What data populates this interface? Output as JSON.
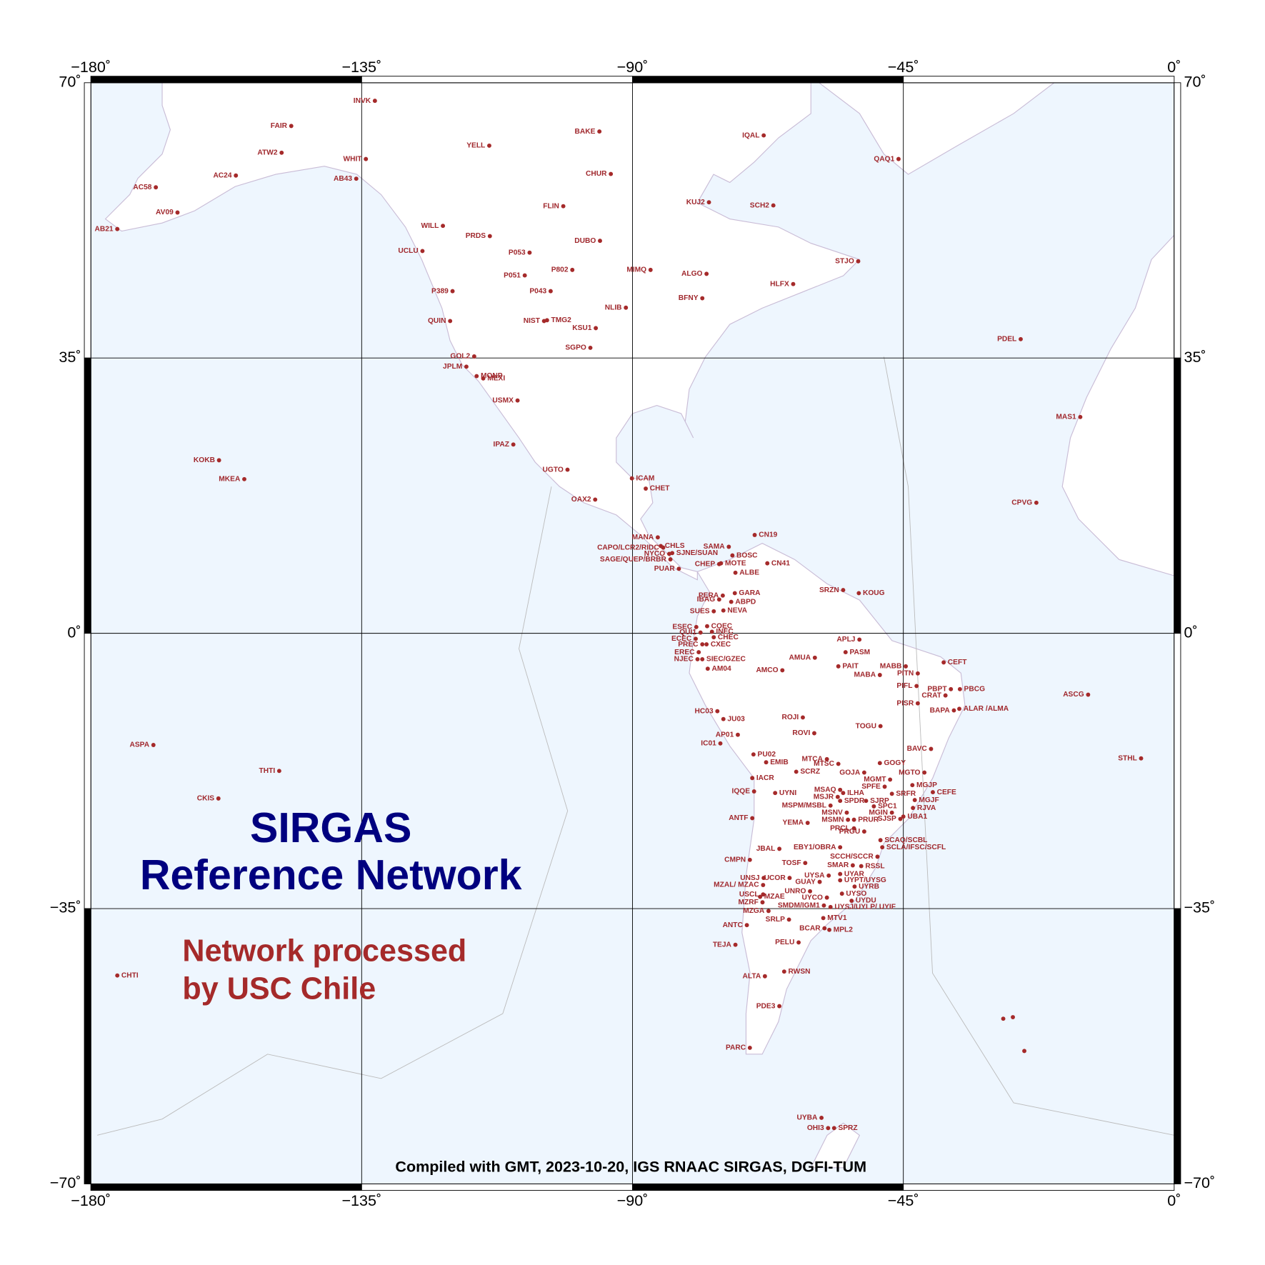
{
  "map": {
    "title_lines": [
      "SIRGAS",
      "Reference Network"
    ],
    "subtitle_lines": [
      "Network processed",
      "by USC Chile"
    ],
    "credit": "Compiled with GMT, 2023-10-20, IGS RNAAC SIRGAS, DGFI-TUM",
    "xlim": [
      -180,
      0
    ],
    "ylim": [
      -70,
      70
    ],
    "xticks": [
      {
        "value": -180,
        "label": "−180˚"
      },
      {
        "value": -135,
        "label": "−135˚"
      },
      {
        "value": -90,
        "label": "−90˚"
      },
      {
        "value": -45,
        "label": "−45˚"
      },
      {
        "value": 0,
        "label": "0˚"
      }
    ],
    "yticks": [
      {
        "value": 70,
        "label": "70˚"
      },
      {
        "value": 35,
        "label": "35˚"
      },
      {
        "value": 0,
        "label": "0˚"
      },
      {
        "value": -35,
        "label": "−35˚"
      },
      {
        "value": -70,
        "label": "−70˚"
      }
    ],
    "stations": [
      {
        "name": "INVK",
        "lon": -132.8,
        "lat": 67.7
      },
      {
        "name": "FAIR",
        "lon": -146.7,
        "lat": 64.5
      },
      {
        "name": "ATW2",
        "lon": -148.3,
        "lat": 61.1
      },
      {
        "name": "WHIT",
        "lon": -134.3,
        "lat": 60.3
      },
      {
        "name": "AC24",
        "lon": -155.9,
        "lat": 58.2
      },
      {
        "name": "AB43",
        "lon": -135.9,
        "lat": 57.8
      },
      {
        "name": "AC58",
        "lon": -169.2,
        "lat": 56.7
      },
      {
        "name": "AV09",
        "lon": -165.6,
        "lat": 53.5
      },
      {
        "name": "YELL",
        "lon": -113.8,
        "lat": 62.0
      },
      {
        "name": "BAKE",
        "lon": -95.5,
        "lat": 63.8
      },
      {
        "name": "IQAL",
        "lon": -68.2,
        "lat": 63.3
      },
      {
        "name": "QAQ1",
        "lon": -45.8,
        "lat": 60.3
      },
      {
        "name": "CHUR",
        "lon": -93.6,
        "lat": 58.4
      },
      {
        "name": "KUJ2",
        "lon": -77.3,
        "lat": 54.8
      },
      {
        "name": "SCH2",
        "lon": -66.6,
        "lat": 54.4
      },
      {
        "name": "FLIN",
        "lon": -101.5,
        "lat": 54.3
      },
      {
        "name": "WILL",
        "lon": -121.5,
        "lat": 51.8
      },
      {
        "name": "PRDS",
        "lon": -113.7,
        "lat": 50.5
      },
      {
        "name": "DUBO",
        "lon": -95.4,
        "lat": 49.9
      },
      {
        "name": "UCLU",
        "lon": -124.9,
        "lat": 48.6
      },
      {
        "name": "P053",
        "lon": -107.1,
        "lat": 48.4
      },
      {
        "name": "STJO",
        "lon": -52.5,
        "lat": 47.3
      },
      {
        "name": "P802",
        "lon": -100.0,
        "lat": 46.2
      },
      {
        "name": "MIMQ",
        "lon": -87.0,
        "lat": 46.2
      },
      {
        "name": "P051",
        "lon": -107.9,
        "lat": 45.5
      },
      {
        "name": "ALGO",
        "lon": -77.7,
        "lat": 45.7
      },
      {
        "name": "HLFX",
        "lon": -63.3,
        "lat": 44.4
      },
      {
        "name": "P389",
        "lon": -119.9,
        "lat": 43.5
      },
      {
        "name": "P043",
        "lon": -103.6,
        "lat": 43.5
      },
      {
        "name": "BFNY",
        "lon": -78.4,
        "lat": 42.6
      },
      {
        "name": "NLIB",
        "lon": -91.1,
        "lat": 41.4
      },
      {
        "name": "QUIN",
        "lon": -120.3,
        "lat": 39.7
      },
      {
        "name": "NIST",
        "lon": -104.7,
        "lat": 39.7
      },
      {
        "name": "KSU1",
        "lon": -96.1,
        "lat": 38.8
      },
      {
        "name": "SGPO",
        "lon": -97.0,
        "lat": 36.3
      },
      {
        "name": "PDEL",
        "lon": -25.5,
        "lat": 37.4
      },
      {
        "name": "GOL2",
        "lon": -116.3,
        "lat": 35.2
      },
      {
        "name": "JPLM",
        "lon": -117.6,
        "lat": 33.9
      },
      {
        "name": "USMX",
        "lon": -109.1,
        "lat": 29.6
      },
      {
        "name": "MAS1",
        "lon": -15.6,
        "lat": 27.5
      },
      {
        "name": "IPAZ",
        "lon": -109.8,
        "lat": 24.0
      },
      {
        "name": "KOKB",
        "lon": -158.7,
        "lat": 22.0
      },
      {
        "name": "MKEA",
        "lon": -154.5,
        "lat": 19.6
      },
      {
        "name": "UGTO",
        "lon": -100.8,
        "lat": 20.8
      },
      {
        "name": "CPVG",
        "lon": -22.9,
        "lat": 16.6
      },
      {
        "name": "OAX2",
        "lon": -96.2,
        "lat": 17.0
      },
      {
        "name": "MANA",
        "lon": -85.8,
        "lat": 12.2
      },
      {
        "name": "CAPO/LCR2/RIDC",
        "lon": -84.9,
        "lat": 10.9
      },
      {
        "name": "SAMA",
        "lon": -74.0,
        "lat": 11.0
      },
      {
        "name": "NYCO",
        "lon": -83.9,
        "lat": 10.1
      },
      {
        "name": "SAGE/QUEP/BRBR",
        "lon": -83.7,
        "lat": 9.4
      },
      {
        "name": "CHEP",
        "lon": -75.6,
        "lat": 8.8
      },
      {
        "name": "PUAR",
        "lon": -82.3,
        "lat": 8.2
      },
      {
        "name": "SRZN",
        "lon": -55.0,
        "lat": 5.5
      },
      {
        "name": "PERA",
        "lon": -75.0,
        "lat": 4.8
      },
      {
        "name": "IBAG",
        "lon": -75.6,
        "lat": 4.3
      },
      {
        "name": "SUES",
        "lon": -76.5,
        "lat": 2.8
      },
      {
        "name": "ESEC",
        "lon": -79.4,
        "lat": 0.8
      },
      {
        "name": "QUI1",
        "lon": -78.7,
        "lat": 0.1
      },
      {
        "name": "ECEC",
        "lon": -79.5,
        "lat": -0.7
      },
      {
        "name": "PREC",
        "lon": -78.4,
        "lat": -1.4
      },
      {
        "name": "EREC",
        "lon": -79.0,
        "lat": -2.4
      },
      {
        "name": "NJEC",
        "lon": -79.2,
        "lat": -3.3
      },
      {
        "name": "APLJ",
        "lon": -52.3,
        "lat": -0.8
      },
      {
        "name": "AMUA",
        "lon": -59.7,
        "lat": -3.1
      },
      {
        "name": "MABB",
        "lon": -44.6,
        "lat": -4.2
      },
      {
        "name": "MABA",
        "lon": -48.9,
        "lat": -5.3
      },
      {
        "name": "PITN",
        "lon": -42.6,
        "lat": -5.1
      },
      {
        "name": "AMCO",
        "lon": -65.1,
        "lat": -4.7
      },
      {
        "name": "PBPT",
        "lon": -37.1,
        "lat": -7.1
      },
      {
        "name": "PIFL",
        "lon": -42.8,
        "lat": -6.7
      },
      {
        "name": "CRAT",
        "lon": -38.0,
        "lat": -7.9
      },
      {
        "name": "ASCG",
        "lon": -14.3,
        "lat": -7.8
      },
      {
        "name": "PISR",
        "lon": -42.6,
        "lat": -8.9
      },
      {
        "name": "BAPA",
        "lon": -36.6,
        "lat": -9.8
      },
      {
        "name": "HC03",
        "lon": -75.9,
        "lat": -9.9
      },
      {
        "name": "ROJI",
        "lon": -61.7,
        "lat": -10.7
      },
      {
        "name": "TOGU",
        "lon": -48.8,
        "lat": -11.8
      },
      {
        "name": "ROVI",
        "lon": -59.8,
        "lat": -12.7
      },
      {
        "name": "AP01",
        "lon": -72.5,
        "lat": -12.9
      },
      {
        "name": "ASPA",
        "lon": -169.6,
        "lat": -14.2
      },
      {
        "name": "IC01",
        "lon": -75.4,
        "lat": -14.0
      },
      {
        "name": "BAVC",
        "lon": -40.4,
        "lat": -14.7
      },
      {
        "name": "STHL",
        "lon": -5.5,
        "lat": -15.9
      },
      {
        "name": "MTCA",
        "lon": -57.7,
        "lat": -16.0
      },
      {
        "name": "MTSC",
        "lon": -55.8,
        "lat": -16.6
      },
      {
        "name": "THTI",
        "lon": -148.7,
        "lat": -17.5
      },
      {
        "name": "GOJA",
        "lon": -51.5,
        "lat": -17.7
      },
      {
        "name": "MGTO",
        "lon": -41.5,
        "lat": -17.7
      },
      {
        "name": "MGMT",
        "lon": -47.2,
        "lat": -18.6
      },
      {
        "name": "SPFE",
        "lon": -48.1,
        "lat": -19.5
      },
      {
        "name": "IQQE",
        "lon": -69.8,
        "lat": -20.1
      },
      {
        "name": "MSAQ",
        "lon": -55.5,
        "lat": -19.9
      },
      {
        "name": "MSJR",
        "lon": -55.9,
        "lat": -20.8
      },
      {
        "name": "CKIS",
        "lon": -158.8,
        "lat": -21.0
      },
      {
        "name": "MSPM/MSBL",
        "lon": -57.1,
        "lat": -21.9
      },
      {
        "name": "MSNV",
        "lon": -54.4,
        "lat": -22.8
      },
      {
        "name": "MGIN",
        "lon": -46.9,
        "lat": -22.8
      },
      {
        "name": "ANTF",
        "lon": -70.1,
        "lat": -23.5
      },
      {
        "name": "MSMN",
        "lon": -54.2,
        "lat": -23.7
      },
      {
        "name": "SJSP",
        "lon": -45.5,
        "lat": -23.6
      },
      {
        "name": "YEMA",
        "lon": -60.9,
        "lat": -24.1
      },
      {
        "name": "PRCL",
        "lon": -53.2,
        "lat": -24.8
      },
      {
        "name": "PRGU",
        "lon": -51.5,
        "lat": -25.2
      },
      {
        "name": "EBY1/OBRA",
        "lon": -55.5,
        "lat": -27.2
      },
      {
        "name": "JBAL",
        "lon": -65.6,
        "lat": -27.4
      },
      {
        "name": "SCCH/SCCR",
        "lon": -49.3,
        "lat": -28.4
      },
      {
        "name": "CMPN",
        "lon": -70.5,
        "lat": -28.8
      },
      {
        "name": "TOSF",
        "lon": -61.3,
        "lat": -29.2
      },
      {
        "name": "SMAR",
        "lon": -53.4,
        "lat": -29.5
      },
      {
        "name": "UCOR",
        "lon": -63.9,
        "lat": -31.1
      },
      {
        "name": "UYSA",
        "lon": -57.4,
        "lat": -30.8
      },
      {
        "name": "MZAL/ MZAC",
        "lon": -68.3,
        "lat": -32.0
      },
      {
        "name": "UNSJ",
        "lon": -68.2,
        "lat": -31.1
      },
      {
        "name": "GUAY",
        "lon": -58.9,
        "lat": -31.6
      },
      {
        "name": "UNRO",
        "lon": -60.5,
        "lat": -32.8
      },
      {
        "name": "USCL",
        "lon": -68.3,
        "lat": -33.2
      },
      {
        "name": "UYCO",
        "lon": -57.7,
        "lat": -33.6
      },
      {
        "name": "MZRF",
        "lon": -68.4,
        "lat": -34.2
      },
      {
        "name": "SMDM/IGM1",
        "lon": -58.2,
        "lat": -34.6
      },
      {
        "name": "MZGA",
        "lon": -67.4,
        "lat": -35.3
      },
      {
        "name": "SRLP",
        "lon": -64.0,
        "lat": -36.4
      },
      {
        "name": "ANTC",
        "lon": -71.0,
        "lat": -37.1
      },
      {
        "name": "BCAR",
        "lon": -58.1,
        "lat": -37.5
      },
      {
        "name": "PELU",
        "lon": -62.4,
        "lat": -39.3
      },
      {
        "name": "TEJA",
        "lon": -72.9,
        "lat": -39.6
      },
      {
        "name": "ALTA",
        "lon": -68.0,
        "lat": -43.6
      },
      {
        "name": "PDE3",
        "lon": -65.6,
        "lat": -47.4
      },
      {
        "name": "PARC",
        "lon": -70.5,
        "lat": -52.7
      },
      {
        "name": "UYBA",
        "lon": -58.6,
        "lat": -61.6
      },
      {
        "name": "OHI3",
        "lon": -57.5,
        "lat": -62.9
      },
      {
        "name": "AB21",
        "lon": -175.6,
        "lat": 51.4
      }
    ],
    "stations_right": [
      {
        "name": "TMG2",
        "lon": -104.2,
        "lat": 39.8
      },
      {
        "name": "MONP",
        "lon": -115.9,
        "lat": 32.7
      },
      {
        "name": "MEXI",
        "lon": -114.8,
        "lat": 32.4
      },
      {
        "name": "ICAM",
        "lon": -90.1,
        "lat": 19.7
      },
      {
        "name": "CHET",
        "lon": -87.8,
        "lat": 18.4
      },
      {
        "name": "CN19",
        "lon": -69.7,
        "lat": 12.5
      },
      {
        "name": "CHLS",
        "lon": -85.3,
        "lat": 11.1
      },
      {
        "name": "SJNE/SUAN",
        "lon": -83.4,
        "lat": 10.2
      },
      {
        "name": "BOSC",
        "lon": -73.4,
        "lat": 9.9
      },
      {
        "name": "MOTE",
        "lon": -75.3,
        "lat": 8.9
      },
      {
        "name": "CN41",
        "lon": -67.6,
        "lat": 8.9
      },
      {
        "name": "ALBE",
        "lon": -72.9,
        "lat": 7.7
      },
      {
        "name": "KOUG",
        "lon": -52.4,
        "lat": 5.1
      },
      {
        "name": "GARA",
        "lon": -73.0,
        "lat": 5.1
      },
      {
        "name": "ABPD",
        "lon": -73.6,
        "lat": 4.0
      },
      {
        "name": "NEVA",
        "lon": -74.9,
        "lat": 2.9
      },
      {
        "name": "COEC",
        "lon": -77.6,
        "lat": 0.9
      },
      {
        "name": "INEC",
        "lon": -76.8,
        "lat": 0.2
      },
      {
        "name": "CHEC",
        "lon": -76.5,
        "lat": -0.5
      },
      {
        "name": "CXEC",
        "lon": -77.7,
        "lat": -1.4
      },
      {
        "name": "SIEC/GZEC",
        "lon": -78.4,
        "lat": -3.3
      },
      {
        "name": "AM04",
        "lon": -77.5,
        "lat": -4.5
      },
      {
        "name": "PASM",
        "lon": -54.6,
        "lat": -2.4
      },
      {
        "name": "CEFT",
        "lon": -38.3,
        "lat": -3.7
      },
      {
        "name": "PAIT",
        "lon": -55.8,
        "lat": -4.2
      },
      {
        "name": "PBCG",
        "lon": -35.6,
        "lat": -7.1
      },
      {
        "name": "ALAR /ALMA",
        "lon": -35.7,
        "lat": -9.6
      },
      {
        "name": "JU03",
        "lon": -74.9,
        "lat": -10.9
      },
      {
        "name": "PU02",
        "lon": -69.9,
        "lat": -15.4
      },
      {
        "name": "EMIB",
        "lon": -67.8,
        "lat": -16.4
      },
      {
        "name": "GOGY",
        "lon": -48.9,
        "lat": -16.5
      },
      {
        "name": "SCRZ",
        "lon": -62.8,
        "lat": -17.6
      },
      {
        "name": "IACR",
        "lon": -70.1,
        "lat": -18.4
      },
      {
        "name": "MGJP",
        "lon": -43.5,
        "lat": -19.3
      },
      {
        "name": "UYNI",
        "lon": -66.3,
        "lat": -20.3
      },
      {
        "name": "ILHA",
        "lon": -55.0,
        "lat": -20.3
      },
      {
        "name": "CEFE",
        "lon": -40.1,
        "lat": -20.2
      },
      {
        "name": "SRFR",
        "lon": -46.9,
        "lat": -20.4
      },
      {
        "name": "SPDR",
        "lon": -55.5,
        "lat": -21.3
      },
      {
        "name": "SJRP",
        "lon": -51.2,
        "lat": -21.3
      },
      {
        "name": "MGJF",
        "lon": -43.1,
        "lat": -21.2
      },
      {
        "name": "SPC1",
        "lon": -49.9,
        "lat": -22.0
      },
      {
        "name": "RJVA",
        "lon": -43.4,
        "lat": -22.2
      },
      {
        "name": "UBA1",
        "lon": -45.0,
        "lat": -23.3
      },
      {
        "name": "PRUR",
        "lon": -53.2,
        "lat": -23.7
      },
      {
        "name": "SCAQ/SCBL",
        "lon": -48.8,
        "lat": -26.3
      },
      {
        "name": "SCLA/IFSC/SCFL",
        "lon": -48.5,
        "lat": -27.2
      },
      {
        "name": "RSSL",
        "lon": -52.0,
        "lat": -29.6
      },
      {
        "name": "UYAR",
        "lon": -55.5,
        "lat": -30.6
      },
      {
        "name": "UYPT/UYSG",
        "lon": -55.5,
        "lat": -31.4
      },
      {
        "name": "UYRB",
        "lon": -53.1,
        "lat": -32.2
      },
      {
        "name": "UYSO",
        "lon": -55.2,
        "lat": -33.1
      },
      {
        "name": "MZAE",
        "lon": -68.8,
        "lat": -33.5
      },
      {
        "name": "UYDU",
        "lon": -53.6,
        "lat": -34.0
      },
      {
        "name": "UYSJ/UYLP/ UYIF",
        "lon": -57.1,
        "lat": -34.8
      },
      {
        "name": "MTV1",
        "lon": -58.3,
        "lat": -36.2
      },
      {
        "name": "MPL2",
        "lon": -57.3,
        "lat": -37.7
      },
      {
        "name": "CHTI",
        "lon": -175.6,
        "lat": -43.5
      },
      {
        "name": "RWSN",
        "lon": -64.8,
        "lat": -43.0
      },
      {
        "name": "SPRZ",
        "lon": -56.5,
        "lat": -62.9
      }
    ],
    "unlabeled_stations": [
      {
        "lon": -28.4,
        "lat": -49.0
      },
      {
        "lon": -26.8,
        "lat": -48.8
      },
      {
        "lon": -24.9,
        "lat": -53.1
      }
    ]
  }
}
